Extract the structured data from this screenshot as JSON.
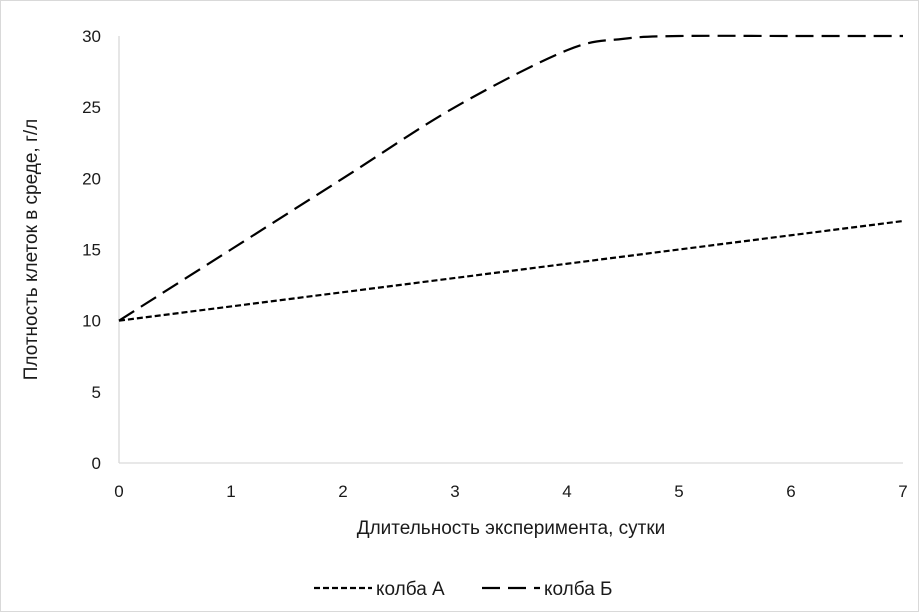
{
  "chart_data": {
    "type": "line",
    "title": "",
    "xlabel": "Длительность эксперимента, сутки",
    "ylabel": "Плотность клеток в среде, г/л",
    "xlim": [
      0,
      7
    ],
    "ylim": [
      0,
      30
    ],
    "x_ticks": [
      0,
      1,
      2,
      3,
      4,
      5,
      6,
      7
    ],
    "y_ticks": [
      0,
      5,
      10,
      15,
      20,
      25,
      30
    ],
    "grid": false,
    "legend_position": "bottom",
    "line_color": "#000000",
    "series": [
      {
        "name": "колба А",
        "style": "short-dash",
        "x": [
          0,
          1,
          2,
          3,
          4,
          5,
          6,
          7
        ],
        "y": [
          10,
          11,
          12,
          13,
          14,
          15,
          16,
          17
        ]
      },
      {
        "name": "колба Б",
        "style": "long-dash",
        "x": [
          0,
          1,
          2,
          3,
          4,
          4.5,
          5,
          6,
          7
        ],
        "y": [
          10,
          15,
          20,
          25,
          29,
          29.8,
          30,
          30,
          30
        ]
      }
    ]
  }
}
